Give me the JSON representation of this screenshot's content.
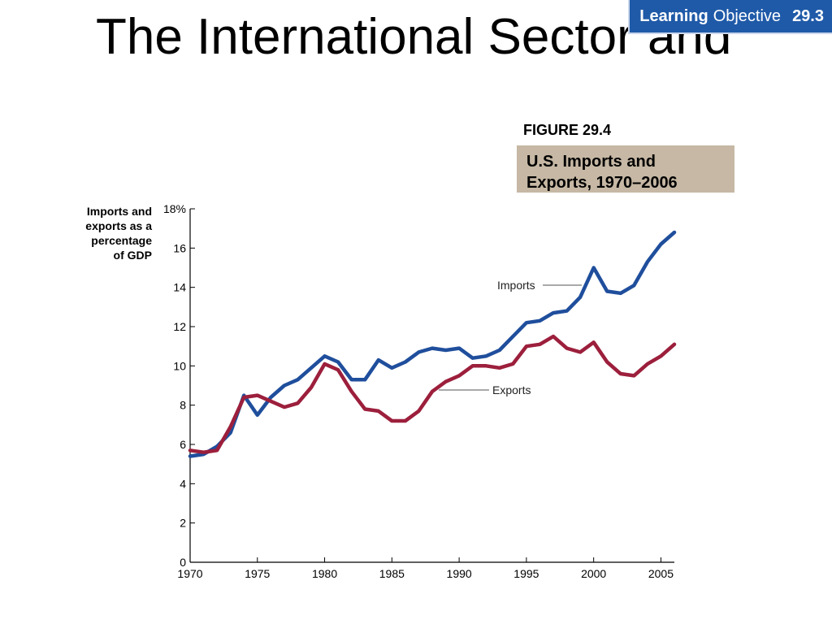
{
  "slide": {
    "title": "The International Sector and",
    "badge": {
      "word1": "Learning",
      "word2": "Objective",
      "number": "29.3"
    },
    "accent_color": "#1f5aa8",
    "caption_bg_color": "#c6b8a4"
  },
  "figure": {
    "label": "FIGURE 29.4",
    "caption_line1": "U.S. Imports and",
    "caption_line2": "Exports, 1970–2006"
  },
  "chart_data": {
    "type": "line",
    "ylabel": "Imports and\nexports as a\npercentage\nof GDP",
    "xlabel": "",
    "xlim": [
      1970,
      2006
    ],
    "ylim": [
      0,
      18
    ],
    "x_ticks": [
      1970,
      1975,
      1980,
      1985,
      1990,
      1995,
      2000,
      2005
    ],
    "x_tick_labels": [
      "1970",
      "1975",
      "1980",
      "1985",
      "1990",
      "1995",
      "2000",
      "2005"
    ],
    "y_ticks": [
      0,
      2,
      4,
      6,
      8,
      10,
      12,
      14,
      16,
      18
    ],
    "y_tick_labels": [
      "0",
      "2",
      "4",
      "6",
      "8",
      "10",
      "12",
      "14",
      "16",
      "18%"
    ],
    "grid": false,
    "x": [
      1970,
      1971,
      1972,
      1973,
      1974,
      1975,
      1976,
      1977,
      1978,
      1979,
      1980,
      1981,
      1982,
      1983,
      1984,
      1985,
      1986,
      1987,
      1988,
      1989,
      1990,
      1991,
      1992,
      1993,
      1994,
      1995,
      1996,
      1997,
      1998,
      1999,
      2000,
      2001,
      2002,
      2003,
      2004,
      2005,
      2006
    ],
    "series": [
      {
        "name": "Imports",
        "color": "#1f4e9c",
        "values": [
          5.4,
          5.5,
          5.9,
          6.6,
          8.5,
          7.5,
          8.4,
          9.0,
          9.3,
          9.9,
          10.5,
          10.2,
          9.3,
          9.3,
          10.3,
          9.9,
          10.2,
          10.7,
          10.9,
          10.8,
          10.9,
          10.4,
          10.5,
          10.8,
          11.5,
          12.2,
          12.3,
          12.7,
          12.8,
          13.5,
          15.0,
          13.8,
          13.7,
          14.1,
          15.3,
          16.2,
          16.8
        ]
      },
      {
        "name": "Exports",
        "color": "#9c1f3c",
        "values": [
          5.7,
          5.6,
          5.7,
          6.9,
          8.4,
          8.5,
          8.2,
          7.9,
          8.1,
          8.9,
          10.1,
          9.8,
          8.7,
          7.8,
          7.7,
          7.2,
          7.2,
          7.7,
          8.7,
          9.2,
          9.5,
          10.0,
          10.0,
          9.9,
          10.1,
          11.0,
          11.1,
          11.5,
          10.9,
          10.7,
          11.2,
          10.2,
          9.6,
          9.5,
          10.1,
          10.5,
          11.1
        ]
      }
    ]
  }
}
